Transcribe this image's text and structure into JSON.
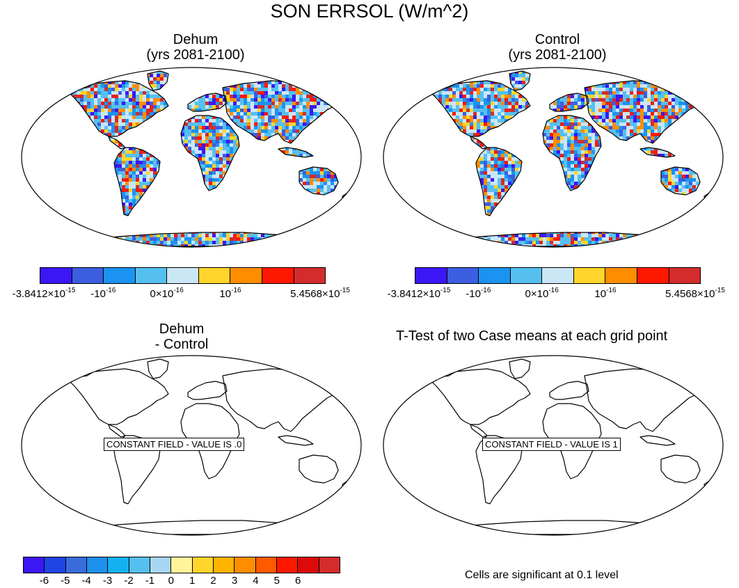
{
  "title": "SON ERRSOL (W/m^2)",
  "panels": [
    {
      "id": "dehum",
      "title_line1": "Dehum",
      "title_line2": "(yrs 2081-2100)"
    },
    {
      "id": "control",
      "title_line1": "Control",
      "title_line2": "(yrs 2081-2100)"
    },
    {
      "id": "diff",
      "title_line1": "Dehum",
      "title_line2": "- Control",
      "constant_label": "CONSTANT FIELD - VALUE IS .0"
    },
    {
      "id": "ttest",
      "title": "T-Test of two Case means at each grid point",
      "constant_label": "CONSTANT FIELD - VALUE IS 1"
    }
  ],
  "top_colorbar": {
    "colors": [
      "#3b17f5",
      "#3c5ee0",
      "#1b93f0",
      "#55c0f0",
      "#cbe6f5",
      "#ffd52b",
      "#ff8d00",
      "#ff1800",
      "#d42c2c"
    ],
    "labels": [
      {
        "base": "-3.8412×10",
        "exp": "-15"
      },
      {
        "base": "-10",
        "exp": "-16"
      },
      {
        "base": "0×10",
        "exp": "-16"
      },
      {
        "base": "10",
        "exp": "-16"
      },
      {
        "base": "5.4568×10",
        "exp": "-15"
      }
    ]
  },
  "bottom_colorbar": {
    "colors": [
      "#3b17f5",
      "#2044e6",
      "#3a6cdc",
      "#1e90ee",
      "#12b2f2",
      "#55c0f0",
      "#a6d6f2",
      "#fff49a",
      "#ffd52b",
      "#ffb400",
      "#ff8d00",
      "#ff5a00",
      "#ff1800",
      "#dc0a0a",
      "#d42c2c"
    ],
    "labels": [
      "-6",
      "-5",
      "-4",
      "-3",
      "-2",
      "-1",
      "0",
      "1",
      "2",
      "3",
      "4",
      "5",
      "6"
    ]
  },
  "significance_note": "Cells are significant at 0.1 level",
  "chart_data": [
    {
      "type": "heatmap",
      "title": "Dehum (yrs 2081-2100)",
      "projection": "Robinson",
      "units": "W/m^2",
      "color_range": [
        -3.8412e-15,
        5.4568e-15
      ],
      "note": "noise-level values on land grid cells"
    },
    {
      "type": "heatmap",
      "title": "Control (yrs 2081-2100)",
      "projection": "Robinson",
      "units": "W/m^2",
      "color_range": [
        -3.8412e-15,
        5.4568e-15
      ],
      "note": "noise-level values on land grid cells"
    },
    {
      "type": "heatmap",
      "title": "Dehum - Control",
      "projection": "Robinson",
      "constant_value": 0,
      "color_levels": [
        -6,
        -5,
        -4,
        -3,
        -2,
        -1,
        0,
        1,
        2,
        3,
        4,
        5,
        6
      ]
    },
    {
      "type": "heatmap",
      "title": "T-Test of two Case means at each grid point",
      "projection": "Robinson",
      "constant_value": 1,
      "significance_level": 0.1
    }
  ]
}
